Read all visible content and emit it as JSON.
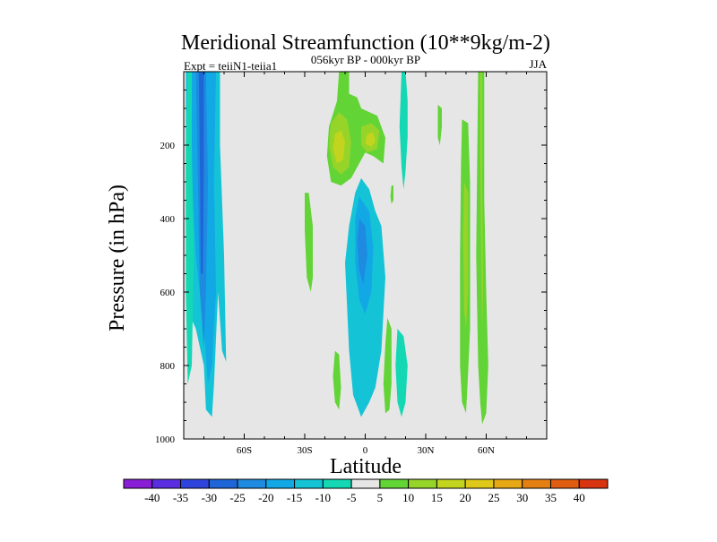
{
  "chart_data": {
    "type": "heatmap",
    "title": "Meridional Streamfunction (10**9kg/m-2)",
    "subtitle": "056kyr BP - 000kyr BP",
    "left_label": "Expt = teiiN1-teiia1",
    "right_label": "JJA",
    "xlabel": "Latitude",
    "ylabel": "Pressure (in hPa)",
    "xlim": [
      -90,
      90
    ],
    "ylim": [
      1000,
      0
    ],
    "x_ticks": [
      {
        "value": -60,
        "label": "60S"
      },
      {
        "value": -30,
        "label": "30S"
      },
      {
        "value": 0,
        "label": "0"
      },
      {
        "value": 30,
        "label": "30N"
      },
      {
        "value": 60,
        "label": "60N"
      }
    ],
    "y_ticks": [
      {
        "value": 200,
        "label": "200"
      },
      {
        "value": 400,
        "label": "400"
      },
      {
        "value": 600,
        "label": "600"
      },
      {
        "value": 800,
        "label": "800"
      },
      {
        "value": 1000,
        "label": "1000"
      }
    ],
    "background_color": "#e6e6e6",
    "colorbar": {
      "labels": [
        "-40",
        "-35",
        "-30",
        "-25",
        "-20",
        "-15",
        "-10",
        "-5",
        "5",
        "10",
        "15",
        "20",
        "25",
        "30",
        "35",
        "40"
      ],
      "colors": [
        "#8a1ed6",
        "#5a2ee0",
        "#2f44dc",
        "#1e66d8",
        "#1e8ae0",
        "#12a8e6",
        "#14c4d6",
        "#14d8b4",
        "#e6e6e6",
        "#62d436",
        "#96d42a",
        "#c2d41e",
        "#e0c81a",
        "#e6a814",
        "#e48012",
        "#e05c10",
        "#d83410"
      ]
    },
    "regions": [
      {
        "name": "sh-polar-band-outer",
        "level": -10,
        "color": "#14c4d6",
        "points": [
          [
            -89,
            0
          ],
          [
            -77,
            0
          ],
          [
            -72,
            0
          ],
          [
            -72,
            200
          ],
          [
            -70,
            500
          ],
          [
            -69,
            790
          ],
          [
            -71,
            760
          ],
          [
            -73,
            600
          ],
          [
            -75,
            850
          ],
          [
            -76,
            940
          ],
          [
            -79,
            920
          ],
          [
            -80,
            800
          ],
          [
            -84,
            700
          ],
          [
            -88,
            650
          ],
          [
            -89,
            400
          ]
        ]
      },
      {
        "name": "sh-polar-band-mid",
        "level": -15,
        "color": "#12a8e6",
        "points": [
          [
            -87,
            0
          ],
          [
            -78,
            0
          ],
          [
            -74,
            0
          ],
          [
            -75,
            300
          ],
          [
            -74,
            600
          ],
          [
            -76,
            800
          ],
          [
            -78,
            850
          ],
          [
            -80,
            700
          ],
          [
            -84,
            500
          ],
          [
            -87,
            200
          ]
        ]
      },
      {
        "name": "sh-polar-band-core",
        "level": -20,
        "color": "#1e8ae0",
        "points": [
          [
            -84,
            0
          ],
          [
            -79,
            0
          ],
          [
            -78,
            300
          ],
          [
            -79,
            600
          ],
          [
            -80,
            750
          ],
          [
            -82,
            600
          ],
          [
            -83,
            300
          ]
        ]
      },
      {
        "name": "sh-polar-band-inner",
        "level": -25,
        "color": "#1e66d8",
        "points": [
          [
            -82.5,
            0
          ],
          [
            -80,
            0
          ],
          [
            -80,
            250
          ],
          [
            -80.5,
            550
          ],
          [
            -81.5,
            550
          ],
          [
            -82,
            250
          ]
        ]
      },
      {
        "name": "sh-midlat-arc",
        "level": -5,
        "color": "#14d8b4",
        "points": [
          [
            -88,
            0
          ],
          [
            -86,
            0
          ],
          [
            -86,
            200
          ],
          [
            -85,
            500
          ],
          [
            -86,
            800
          ],
          [
            -88,
            850
          ],
          [
            -89,
            600
          ],
          [
            -89,
            200
          ]
        ]
      },
      {
        "name": "tropical-upper-warm",
        "level": 10,
        "color": "#62d436",
        "points": [
          [
            -13,
            0
          ],
          [
            -8,
            0
          ],
          [
            -8,
            60
          ],
          [
            -4,
            70
          ],
          [
            -2,
            100
          ],
          [
            2,
            110
          ],
          [
            6,
            120
          ],
          [
            10,
            180
          ],
          [
            9,
            250
          ],
          [
            4,
            230
          ],
          [
            0,
            220
          ],
          [
            -3,
            250
          ],
          [
            -7,
            290
          ],
          [
            -12,
            310
          ],
          [
            -17,
            300
          ],
          [
            -19,
            230
          ],
          [
            -18,
            150
          ],
          [
            -14,
            80
          ]
        ]
      },
      {
        "name": "tropical-upper-left-15",
        "level": 15,
        "color": "#96d42a",
        "points": [
          [
            -17,
            140
          ],
          [
            -13,
            110
          ],
          [
            -9,
            130
          ],
          [
            -7,
            190
          ],
          [
            -8,
            260
          ],
          [
            -12,
            280
          ],
          [
            -16,
            260
          ],
          [
            -18,
            200
          ]
        ]
      },
      {
        "name": "tropical-upper-left-20",
        "level": 20,
        "color": "#c2d41e",
        "points": [
          [
            -15,
            170
          ],
          [
            -12,
            160
          ],
          [
            -10,
            190
          ],
          [
            -11,
            240
          ],
          [
            -14,
            250
          ],
          [
            -16,
            210
          ]
        ]
      },
      {
        "name": "tropical-upper-right-15",
        "level": 15,
        "color": "#96d42a",
        "points": [
          [
            -2,
            150
          ],
          [
            3,
            140
          ],
          [
            7,
            160
          ],
          [
            6,
            210
          ],
          [
            1,
            220
          ],
          [
            -2,
            200
          ]
        ]
      },
      {
        "name": "tropical-upper-right-20",
        "level": 20,
        "color": "#c2d41e",
        "points": [
          [
            1,
            170
          ],
          [
            4,
            165
          ],
          [
            5,
            190
          ],
          [
            3,
            205
          ],
          [
            0,
            195
          ]
        ]
      },
      {
        "name": "tropical-lower-cold",
        "level": -10,
        "color": "#14c4d6",
        "points": [
          [
            -2,
            290
          ],
          [
            2,
            320
          ],
          [
            5,
            380
          ],
          [
            8,
            420
          ],
          [
            10,
            560
          ],
          [
            8,
            760
          ],
          [
            5,
            860
          ],
          [
            2,
            900
          ],
          [
            -2,
            940
          ],
          [
            -6,
            880
          ],
          [
            -8,
            760
          ],
          [
            -10,
            520
          ],
          [
            -8,
            420
          ],
          [
            -5,
            330
          ]
        ]
      },
      {
        "name": "tropical-lower-cold-15",
        "level": -15,
        "color": "#12a8e6",
        "points": [
          [
            -3,
            340
          ],
          [
            2,
            380
          ],
          [
            4,
            480
          ],
          [
            3,
            600
          ],
          [
            0,
            660
          ],
          [
            -3,
            620
          ],
          [
            -5,
            520
          ],
          [
            -5,
            400
          ]
        ]
      },
      {
        "name": "tropical-lower-cold-20",
        "level": -20,
        "color": "#1e8ae0",
        "points": [
          [
            -3,
            400
          ],
          [
            0,
            420
          ],
          [
            1,
            500
          ],
          [
            -1,
            580
          ],
          [
            -3,
            540
          ],
          [
            -4,
            460
          ]
        ]
      },
      {
        "name": "sh-subtropic-warm-a",
        "level": 5,
        "color": "#62d436",
        "points": [
          [
            -30,
            330
          ],
          [
            -28,
            330
          ],
          [
            -26,
            420
          ],
          [
            -26,
            560
          ],
          [
            -27,
            600
          ],
          [
            -29,
            560
          ],
          [
            -30,
            430
          ]
        ]
      },
      {
        "name": "sh-subtropic-warm-b",
        "level": 5,
        "color": "#62d436",
        "points": [
          [
            -15,
            760
          ],
          [
            -13,
            770
          ],
          [
            -12,
            860
          ],
          [
            -13,
            920
          ],
          [
            -15,
            900
          ],
          [
            -16,
            830
          ]
        ]
      },
      {
        "name": "nh-tropic-warm",
        "level": 5,
        "color": "#62d436",
        "points": [
          [
            11,
            670
          ],
          [
            13,
            700
          ],
          [
            13,
            850
          ],
          [
            12,
            920
          ],
          [
            10,
            930
          ],
          [
            9,
            850
          ],
          [
            10,
            740
          ]
        ]
      },
      {
        "name": "nh-tropic-cold",
        "level": -5,
        "color": "#14d8b4",
        "points": [
          [
            16,
            700
          ],
          [
            19,
            720
          ],
          [
            21,
            800
          ],
          [
            20,
            900
          ],
          [
            18,
            940
          ],
          [
            16,
            900
          ],
          [
            15,
            800
          ]
        ]
      },
      {
        "name": "nh-small-cold-a",
        "level": -5,
        "color": "#14d8b4",
        "points": [
          [
            18,
            0
          ],
          [
            20,
            0
          ],
          [
            21,
            80
          ],
          [
            21,
            180
          ],
          [
            20,
            270
          ],
          [
            19,
            320
          ],
          [
            18,
            260
          ],
          [
            17,
            150
          ]
        ]
      },
      {
        "name": "nh-small-warm",
        "level": 5,
        "color": "#62d436",
        "points": [
          [
            13,
            310
          ],
          [
            14,
            310
          ],
          [
            14,
            350
          ],
          [
            13,
            360
          ],
          [
            12.5,
            340
          ]
        ]
      },
      {
        "name": "nh-upper-warm-spot",
        "level": 5,
        "color": "#62d436",
        "points": [
          [
            36,
            90
          ],
          [
            38,
            100
          ],
          [
            38,
            150
          ],
          [
            37,
            200
          ],
          [
            36,
            180
          ]
        ]
      },
      {
        "name": "nh-midlat-warm-outer",
        "level": 5,
        "color": "#62d436",
        "points": [
          [
            48,
            130
          ],
          [
            51,
            140
          ],
          [
            52,
            300
          ],
          [
            52,
            700
          ],
          [
            51,
            820
          ],
          [
            50,
            930
          ],
          [
            48,
            900
          ],
          [
            47,
            800
          ],
          [
            47,
            500
          ],
          [
            47.5,
            250
          ]
        ]
      },
      {
        "name": "nh-midlat-warm-inner",
        "level": 10,
        "color": "#96d42a",
        "points": [
          [
            49,
            300
          ],
          [
            51,
            330
          ],
          [
            51,
            600
          ],
          [
            50,
            700
          ],
          [
            49,
            650
          ],
          [
            48.5,
            450
          ]
        ]
      },
      {
        "name": "nh-polar-warm",
        "level": 5,
        "color": "#62d436",
        "points": [
          [
            56,
            0
          ],
          [
            59,
            0
          ],
          [
            59,
            350
          ],
          [
            60,
            600
          ],
          [
            61,
            800
          ],
          [
            60,
            930
          ],
          [
            58,
            960
          ],
          [
            57,
            900
          ],
          [
            56,
            800
          ],
          [
            55,
            500
          ],
          [
            55.5,
            250
          ]
        ]
      },
      {
        "name": "nh-polar-warm-stripe",
        "level": 10,
        "color": "#96d42a",
        "points": [
          [
            57,
            0
          ],
          [
            58,
            0
          ],
          [
            58,
            300
          ],
          [
            58.5,
            600
          ],
          [
            58,
            700
          ],
          [
            57.5,
            500
          ],
          [
            57,
            250
          ]
        ]
      }
    ]
  }
}
